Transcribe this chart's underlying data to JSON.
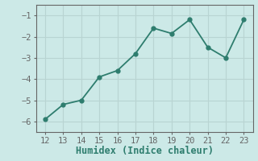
{
  "x": [
    12,
    13,
    14,
    15,
    16,
    17,
    18,
    19,
    20,
    21,
    22,
    23
  ],
  "y": [
    -5.9,
    -5.2,
    -5.0,
    -3.9,
    -3.6,
    -2.8,
    -1.6,
    -1.85,
    -1.2,
    -2.5,
    -3.0,
    -1.2
  ],
  "xlabel": "Humidex (Indice chaleur)",
  "line_color": "#2e7d6e",
  "bg_color": "#cce9e7",
  "grid_color": "#b8d4d2",
  "spine_color": "#666666",
  "xlim": [
    11.5,
    23.5
  ],
  "ylim": [
    -6.5,
    -0.5
  ],
  "yticks": [
    -6,
    -5,
    -4,
    -3,
    -2,
    -1
  ],
  "xticks": [
    12,
    13,
    14,
    15,
    16,
    17,
    18,
    19,
    20,
    21,
    22,
    23
  ],
  "marker_size": 3.5,
  "line_width": 1.3,
  "xlabel_fontsize": 8.5,
  "tick_fontsize": 7.5
}
